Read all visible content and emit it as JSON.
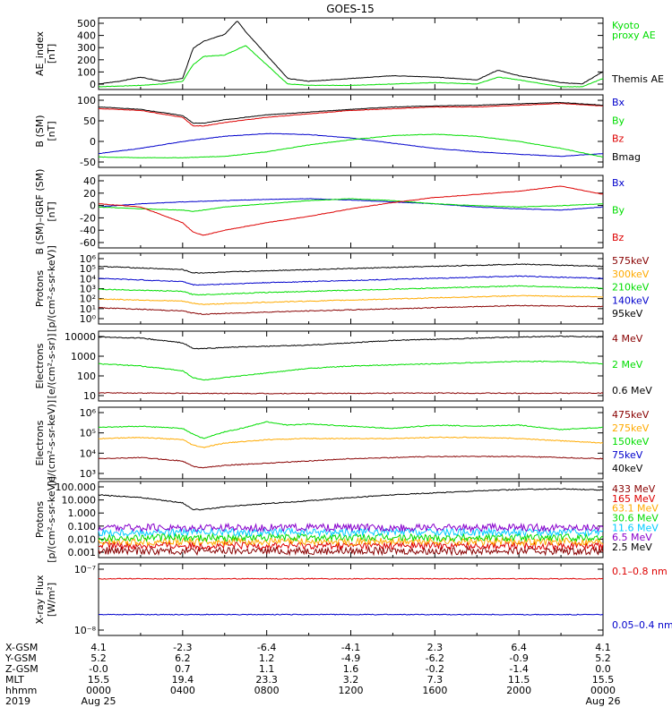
{
  "title": "GOES-15",
  "colors": {
    "black": "#000000",
    "red": "#dd0000",
    "green": "#00dd00",
    "blue": "#0000cc",
    "orange": "#ffaa00",
    "darkred": "#880000",
    "cyan": "#00ccff",
    "yellow": "#ffff00",
    "purple": "#8800cc"
  },
  "chart_data": [
    {
      "type": "line",
      "id": "ae",
      "ylabel": [
        "AE_index",
        "[nT]"
      ],
      "yticks": [
        "500",
        "400",
        "300",
        "200",
        "100",
        "0"
      ],
      "ylim": [
        0,
        520
      ],
      "series": [
        {
          "name": "Kyoto proxy AE",
          "label_lines": [
            "Kyoto",
            "proxy AE"
          ],
          "color": "#00dd00",
          "x": [
            0,
            2,
            3,
            4,
            4.5,
            5,
            6,
            7,
            8,
            9,
            10,
            12,
            14,
            16,
            18,
            19,
            20,
            22,
            23,
            24
          ],
          "y": [
            20,
            30,
            40,
            60,
            180,
            240,
            250,
            320,
            180,
            40,
            30,
            30,
            40,
            50,
            40,
            90,
            70,
            20,
            20,
            80
          ]
        },
        {
          "name": "Themis AE",
          "label_lines": [
            "Themis AE"
          ],
          "color": "#000000",
          "x": [
            0,
            1,
            2,
            3,
            4,
            4.5,
            5,
            6,
            6.6,
            7,
            8,
            9,
            10,
            12,
            14,
            16,
            18,
            19,
            20,
            22,
            23,
            24
          ],
          "y": [
            40,
            60,
            90,
            60,
            80,
            300,
            350,
            400,
            500,
            420,
            250,
            80,
            60,
            80,
            100,
            90,
            70,
            140,
            100,
            50,
            40,
            130
          ]
        }
      ]
    },
    {
      "type": "line",
      "id": "b_sm",
      "ylabel": [
        "B (SM)",
        "[nT]"
      ],
      "yticks": [
        "100",
        "50",
        "0",
        "-50"
      ],
      "ylim": [
        -60,
        150
      ],
      "series": [
        {
          "name": "Bx",
          "label_lines": [
            "Bx"
          ],
          "color": "#0000cc",
          "x": [
            0,
            2,
            4,
            6,
            8,
            10,
            12,
            14,
            16,
            18,
            20,
            22,
            24
          ],
          "y": [
            -20,
            -5,
            15,
            30,
            38,
            35,
            25,
            10,
            -5,
            -15,
            -22,
            -28,
            -20
          ]
        },
        {
          "name": "By",
          "label_lines": [
            "By"
          ],
          "color": "#00dd00",
          "x": [
            0,
            2,
            4,
            6,
            8,
            10,
            12,
            14,
            16,
            18,
            20,
            22,
            24
          ],
          "y": [
            -30,
            -32,
            -32,
            -28,
            -15,
            5,
            20,
            32,
            36,
            30,
            15,
            -5,
            -30
          ]
        },
        {
          "name": "Bz",
          "label_lines": [
            "Bz"
          ],
          "color": "#dd0000",
          "x": [
            0,
            2,
            4,
            4.5,
            5,
            6,
            8,
            10,
            12,
            14,
            16,
            18,
            20,
            22,
            24
          ],
          "y": [
            110,
            105,
            85,
            60,
            60,
            70,
            85,
            95,
            105,
            110,
            115,
            115,
            120,
            125,
            118
          ]
        },
        {
          "name": "Bmag",
          "label_lines": [
            "Bmag"
          ],
          "color": "#000000",
          "x": [
            0,
            2,
            4,
            4.5,
            5,
            6,
            8,
            10,
            12,
            14,
            16,
            18,
            20,
            22,
            24
          ],
          "y": [
            115,
            108,
            90,
            68,
            68,
            78,
            92,
            100,
            108,
            115,
            118,
            120,
            124,
            128,
            120
          ]
        }
      ]
    },
    {
      "type": "line",
      "id": "b_igrf",
      "ylabel": [
        "B (SM)–IGRF (SM)",
        "[nT]"
      ],
      "yticks": [
        "40",
        "20",
        "0",
        "-20",
        "-40",
        "-60"
      ],
      "ylim": [
        -70,
        45
      ],
      "series": [
        {
          "name": "Bx",
          "label_lines": [
            "Bx"
          ],
          "color": "#0000cc",
          "x": [
            0,
            2,
            4,
            6,
            8,
            10,
            12,
            14,
            16,
            18,
            20,
            22,
            24
          ],
          "y": [
            -5,
            0,
            3,
            5,
            7,
            8,
            6,
            3,
            0,
            -5,
            -8,
            -10,
            -5
          ]
        },
        {
          "name": "By",
          "label_lines": [
            "By"
          ],
          "color": "#00dd00",
          "x": [
            0,
            2,
            4,
            4.5,
            5,
            6,
            8,
            10,
            12,
            14,
            16,
            18,
            20,
            22,
            24
          ],
          "y": [
            -5,
            -8,
            -10,
            -12,
            -10,
            -5,
            0,
            5,
            8,
            5,
            0,
            -3,
            -5,
            -3,
            0
          ]
        },
        {
          "name": "Bz",
          "label_lines": [
            "Bz"
          ],
          "color": "#dd0000",
          "x": [
            0,
            2,
            4,
            4.5,
            5,
            6,
            8,
            10,
            12,
            14,
            16,
            18,
            20,
            22,
            24
          ],
          "y": [
            0,
            -5,
            -30,
            -45,
            -50,
            -42,
            -30,
            -20,
            -8,
            2,
            10,
            15,
            20,
            28,
            15
          ]
        }
      ]
    },
    {
      "type": "line",
      "id": "protons_low",
      "log": true,
      "ylabel": [
        "Protons",
        "[p/(cm²-s-sr-keV)]"
      ],
      "yticks": [
        "10⁶",
        "10⁵",
        "10⁴",
        "10³",
        "10²",
        "10¹",
        "10⁰"
      ],
      "ylim": [
        0,
        6.5
      ],
      "series": [
        {
          "name": "575keV",
          "label_lines": [
            "575keV"
          ],
          "color": "#880000",
          "x": [
            0,
            4,
            4.5,
            5,
            8,
            12,
            16,
            20,
            24
          ],
          "y": [
            1.5,
            1.2,
            1.0,
            0.9,
            1.1,
            1.3,
            1.5,
            1.7,
            1.6
          ]
        },
        {
          "name": "300keV",
          "label_lines": [
            "300keV"
          ],
          "color": "#ffaa00",
          "x": [
            0,
            4,
            4.5,
            5,
            8,
            12,
            16,
            20,
            24
          ],
          "y": [
            2.3,
            2.1,
            1.9,
            1.8,
            2.0,
            2.2,
            2.4,
            2.6,
            2.5
          ]
        },
        {
          "name": "210keV",
          "label_lines": [
            "210keV"
          ],
          "color": "#00dd00",
          "x": [
            0,
            4,
            4.5,
            5,
            8,
            12,
            16,
            20,
            24
          ],
          "y": [
            3.2,
            3.0,
            2.7,
            2.7,
            2.9,
            3.1,
            3.3,
            3.5,
            3.3
          ]
        },
        {
          "name": "140keV",
          "label_lines": [
            "140keV"
          ],
          "color": "#0000cc",
          "x": [
            0,
            4,
            4.5,
            5,
            8,
            12,
            16,
            20,
            24
          ],
          "y": [
            4.2,
            3.9,
            3.6,
            3.6,
            3.8,
            4.0,
            4.2,
            4.4,
            4.2
          ]
        },
        {
          "name": "95keV",
          "label_lines": [
            "95keV"
          ],
          "color": "#000000",
          "x": [
            0,
            4,
            4.5,
            5,
            8,
            12,
            16,
            20,
            24
          ],
          "y": [
            5.3,
            5.0,
            4.7,
            4.7,
            4.9,
            5.1,
            5.3,
            5.5,
            5.3
          ]
        }
      ]
    },
    {
      "type": "line",
      "id": "electrons_int",
      "log": true,
      "ylabel": [
        "Electrons",
        "[e/(cm²-s-sr)]"
      ],
      "yticks": [
        "10000",
        "1000",
        "100",
        "10"
      ],
      "ylim": [
        1,
        4
      ],
      "series": [
        {
          "name": "4 MeV",
          "label_lines": [
            "4 MeV"
          ],
          "color": "#880000",
          "x": [
            0,
            4,
            8,
            12,
            16,
            20,
            24
          ],
          "y": [
            1.35,
            1.33,
            1.32,
            1.33,
            1.34,
            1.33,
            1.34
          ]
        },
        {
          "name": "2 MeV",
          "label_lines": [
            "2 MeV"
          ],
          "color": "#00dd00",
          "x": [
            0,
            2,
            4,
            4.5,
            5,
            6,
            8,
            10,
            12,
            14,
            16,
            18,
            20,
            22,
            24
          ],
          "y": [
            2.6,
            2.5,
            2.3,
            2.0,
            1.9,
            2.0,
            2.2,
            2.4,
            2.5,
            2.55,
            2.6,
            2.65,
            2.7,
            2.7,
            2.6
          ]
        },
        {
          "name": "0.6 MeV",
          "label_lines": [
            "0.6 MeV"
          ],
          "color": "#000000",
          "x": [
            0,
            2,
            4,
            4.5,
            5,
            6,
            8,
            10,
            12,
            14,
            16,
            18,
            20,
            22,
            24
          ],
          "y": [
            3.75,
            3.7,
            3.5,
            3.25,
            3.25,
            3.3,
            3.35,
            3.4,
            3.5,
            3.6,
            3.65,
            3.7,
            3.75,
            3.78,
            3.75
          ]
        }
      ]
    },
    {
      "type": "line",
      "id": "electrons_diff",
      "log": true,
      "ylabel": [
        "Electrons",
        "[e/(cm²-s-sr-keV)]"
      ],
      "yticks": [
        "10⁶",
        "10⁵",
        "10⁴",
        "10³"
      ],
      "ylim": [
        2.8,
        6
      ],
      "series": [
        {
          "name": "475keV",
          "label_lines": [
            "475keV"
          ],
          "color": "#880000",
          "x": [
            0,
            2,
            4,
            4.5,
            5,
            6,
            8,
            10,
            12,
            14,
            16,
            18,
            20,
            22,
            24
          ],
          "y": [
            3.7,
            3.75,
            3.6,
            3.35,
            3.3,
            3.4,
            3.5,
            3.6,
            3.7,
            3.75,
            3.8,
            3.8,
            3.8,
            3.75,
            3.7
          ]
        },
        {
          "name": "275keV",
          "label_lines": [
            "275keV"
          ],
          "color": "#ffaa00",
          "x": [
            0,
            2,
            4,
            4.5,
            5,
            6,
            8,
            10,
            12,
            14,
            16,
            18,
            20,
            22,
            24
          ],
          "y": [
            4.6,
            4.65,
            4.55,
            4.3,
            4.2,
            4.4,
            4.55,
            4.6,
            4.6,
            4.6,
            4.65,
            4.65,
            4.6,
            4.5,
            4.4
          ]
        },
        {
          "name": "150keV",
          "label_lines": [
            "150keV"
          ],
          "color": "#00dd00",
          "x": [
            0,
            2,
            4,
            4.5,
            5,
            5.5,
            6,
            7,
            8,
            9,
            10,
            12,
            14,
            16,
            18,
            20,
            22,
            24
          ],
          "y": [
            5.1,
            5.15,
            5.05,
            4.8,
            4.6,
            4.75,
            4.9,
            5.1,
            5.35,
            5.2,
            5.25,
            5.15,
            5.05,
            5.2,
            5.15,
            5.2,
            5.0,
            5.1
          ]
        },
        {
          "name": "75keV",
          "label_lines": [
            "75keV"
          ],
          "color": "#0000cc",
          "x": [],
          "y": []
        },
        {
          "name": "40keV",
          "label_lines": [
            "40keV"
          ],
          "color": "#000000",
          "x": [],
          "y": []
        }
      ]
    },
    {
      "type": "line",
      "id": "protons_high",
      "log": true,
      "ylabel": [
        "Protons",
        "[p/(cm²-s-sr-keV)]"
      ],
      "yticks": [
        "100.000",
        "10.000",
        "1.000",
        "0.100",
        "0.010",
        "0.001"
      ],
      "ylim": [
        -3.2,
        2.5
      ],
      "series": [
        {
          "name": "433 MeV",
          "label_lines": [
            "433 MeV"
          ],
          "color": "#880000",
          "x": [
            0,
            24
          ],
          "y": [
            -2.7,
            -2.7
          ]
        },
        {
          "name": "165 MeV",
          "label_lines": [
            "165 MeV"
          ],
          "color": "#dd0000",
          "x": [
            0,
            24
          ],
          "y": [
            -2.3,
            -2.3
          ]
        },
        {
          "name": "63.1 MeV",
          "label_lines": [
            "63.1 MeV"
          ],
          "color": "#ffaa00",
          "x": [
            0,
            24
          ],
          "y": [
            -2.0,
            -2.0
          ]
        },
        {
          "name": "30.6 MeV",
          "label_lines": [
            "30.6 MeV"
          ],
          "color": "#00dd00",
          "x": [
            0,
            24
          ],
          "y": [
            -1.7,
            -1.7
          ]
        },
        {
          "name": "11.6 MeV",
          "label_lines": [
            "11.6 MeV"
          ],
          "color": "#00ccff",
          "x": [
            0,
            24
          ],
          "y": [
            -1.3,
            -1.3
          ]
        },
        {
          "name": "6.5 MeV",
          "label_lines": [
            "6.5 MeV"
          ],
          "color": "#8800cc",
          "x": [
            0,
            24
          ],
          "y": [
            -0.95,
            -0.95
          ]
        },
        {
          "name": "2.5 MeV",
          "label_lines": [
            "2.5 MeV"
          ],
          "color": "#000000",
          "x": [
            0,
            2,
            4,
            4.5,
            5,
            6,
            8,
            10,
            12,
            14,
            16,
            18,
            20,
            22,
            24
          ],
          "y": [
            1.5,
            1.3,
            0.9,
            0.4,
            0.4,
            0.6,
            0.85,
            1.05,
            1.3,
            1.5,
            1.65,
            1.8,
            1.9,
            1.95,
            1.85
          ]
        }
      ]
    },
    {
      "type": "line",
      "id": "xray",
      "log": true,
      "ylabel": [
        "X-ray Flux",
        "[W/m²]"
      ],
      "yticks": [
        "10⁻⁷",
        "10⁻⁸"
      ],
      "ylim": [
        -8.2,
        -7
      ],
      "series": [
        {
          "name": "0.1–0.8 nm",
          "label_lines": [
            "0.1–0.8 nm"
          ],
          "color": "#dd0000",
          "x": [
            0,
            24
          ],
          "y": [
            -7.25,
            -7.25
          ]
        },
        {
          "name": "0.05–0.4 nm",
          "label_lines": [
            "0.05–0.4 nm"
          ],
          "color": "#0000cc",
          "x": [
            0,
            24
          ],
          "y": [
            -7.85,
            -7.85
          ]
        }
      ]
    }
  ],
  "xaxis": {
    "rows": [
      {
        "label": "X-GSM",
        "values": [
          "4.1",
          "-2.3",
          "-6.4",
          "-4.1",
          "2.3",
          "6.4",
          "4.1"
        ]
      },
      {
        "label": "Y-GSM",
        "values": [
          "5.2",
          "6.2",
          "1.2",
          "-4.9",
          "-6.2",
          "-0.9",
          "5.2"
        ]
      },
      {
        "label": "Z-GSM",
        "values": [
          "-0.0",
          "0.7",
          "1.1",
          "1.6",
          "-0.2",
          "-1.4",
          "0.0"
        ]
      },
      {
        "label": "MLT",
        "values": [
          "15.5",
          "19.4",
          "23.3",
          "3.2",
          "7.3",
          "11.5",
          "15.5"
        ]
      },
      {
        "label": "hhmm",
        "values": [
          "0000",
          "0400",
          "0800",
          "1200",
          "1600",
          "2000",
          "0000"
        ]
      },
      {
        "label": "2019",
        "values": [
          "Aug 25",
          "",
          "",
          "",
          "",
          "",
          "Aug 26"
        ]
      }
    ]
  }
}
